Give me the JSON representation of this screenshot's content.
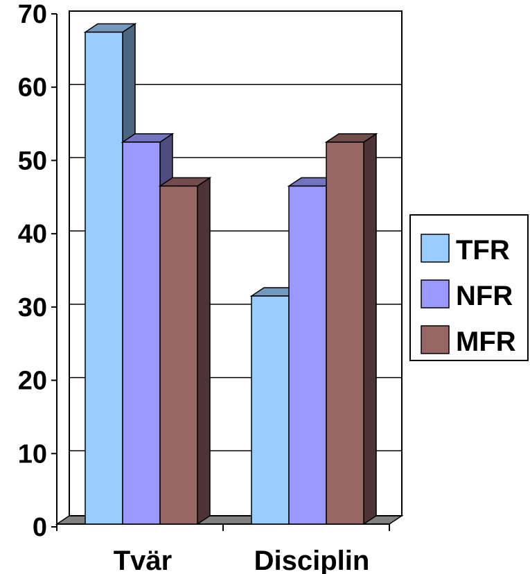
{
  "chart_data": {
    "type": "bar",
    "title": "",
    "xlabel": "",
    "ylabel": "",
    "categories": [
      "Tvär",
      "Disciplin"
    ],
    "series": [
      {
        "name": "TFR",
        "values": [
          67.5,
          31.5
        ],
        "color": "#99ccff"
      },
      {
        "name": "NFR",
        "values": [
          52.5,
          46.5
        ],
        "color": "#9999ff"
      },
      {
        "name": "MFR",
        "values": [
          46.5,
          52.5
        ],
        "color": "#996666"
      }
    ],
    "ylim": [
      0,
      70
    ],
    "yticks": [
      "0",
      "10",
      "20",
      "30",
      "40",
      "50",
      "60",
      "70"
    ],
    "grid": true,
    "style": "3d",
    "legend_position": "right"
  }
}
